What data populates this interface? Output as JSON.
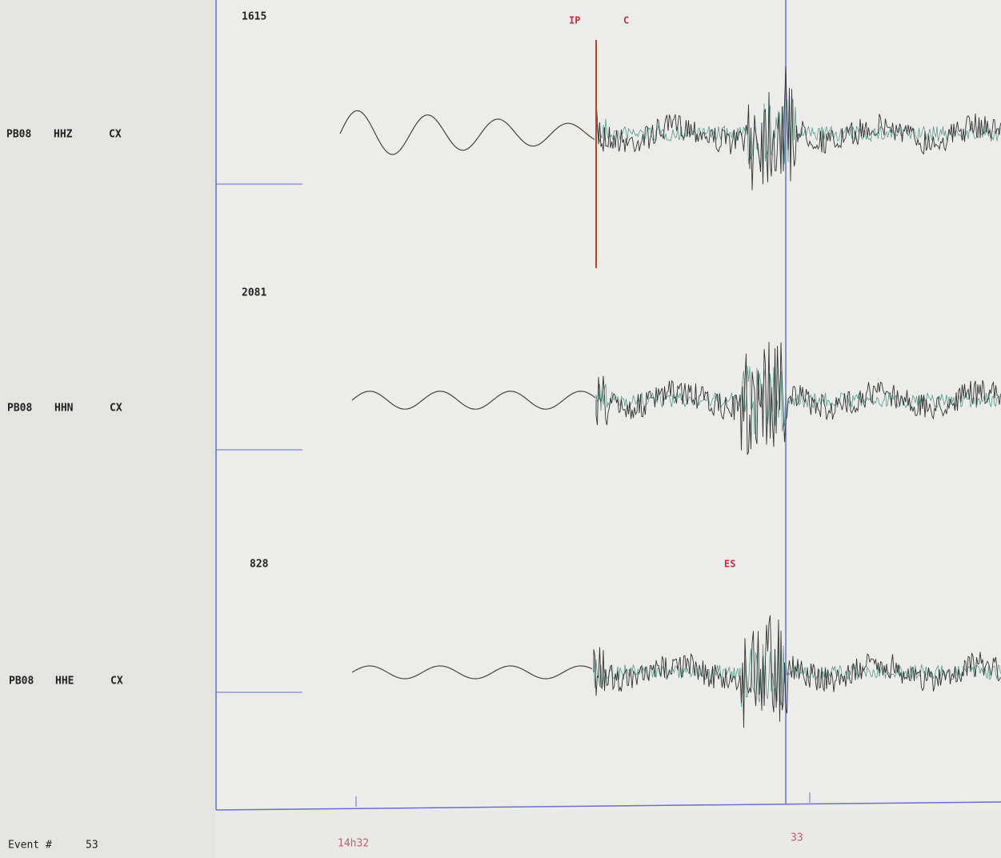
{
  "traces": [
    {
      "amplitude": "1615",
      "station": "PB08",
      "component": "HHZ",
      "network": "CX",
      "picks": [
        "IP",
        "C"
      ]
    },
    {
      "amplitude": "2081",
      "station": "PB08",
      "component": "HHN",
      "network": "CX",
      "picks": []
    },
    {
      "amplitude": "828",
      "station": "PB08",
      "component": "HHE",
      "network": "CX",
      "picks": [
        "ES"
      ]
    }
  ],
  "footer": {
    "event_label": "Event #",
    "event_number": "53",
    "time_start": "14h32",
    "time_mark": "33"
  }
}
